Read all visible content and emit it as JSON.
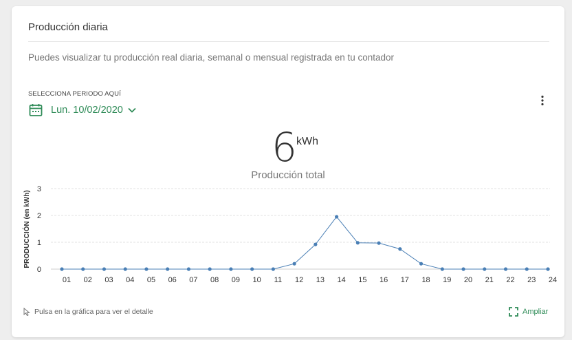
{
  "card": {
    "title": "Producción diaria",
    "subtitle": "Puedes visualizar tu producción real diaria, semanal o mensual registrada en tu contador"
  },
  "period": {
    "label": "SELECCIONA PERIODO AQUÍ",
    "selected": "Lun. 10/02/2020",
    "icon": "calendar-icon",
    "accent": "#2e8b57"
  },
  "menu": {
    "icon": "more-vertical-icon"
  },
  "total": {
    "value": "6",
    "unit": "kWh",
    "label": "Producción total"
  },
  "chart_data": {
    "type": "line",
    "ylabel": "PRODUCCIÓN (en kWh)",
    "xlabel": "",
    "categories": [
      "01",
      "02",
      "03",
      "04",
      "05",
      "06",
      "07",
      "08",
      "09",
      "10",
      "11",
      "12",
      "13",
      "14",
      "15",
      "16",
      "17",
      "18",
      "19",
      "20",
      "21",
      "22",
      "23",
      "24"
    ],
    "series": [
      {
        "values": [
          0,
          0,
          0,
          0,
          0,
          0,
          0,
          0,
          0,
          0,
          0,
          0.2,
          0.92,
          1.95,
          0.98,
          0.97,
          0.75,
          0.2,
          0,
          0,
          0,
          0,
          0,
          0
        ],
        "color": "#4a7fb5"
      }
    ],
    "yticks": [
      "0",
      "1",
      "2",
      "3"
    ],
    "ylim": [
      0,
      3
    ],
    "grid": true
  },
  "footer": {
    "hint": "Pulsa en la gráfica para ver el detalle",
    "hint_icon": "pointer-icon",
    "expand_label": "Ampliar",
    "expand_icon": "expand-icon"
  }
}
